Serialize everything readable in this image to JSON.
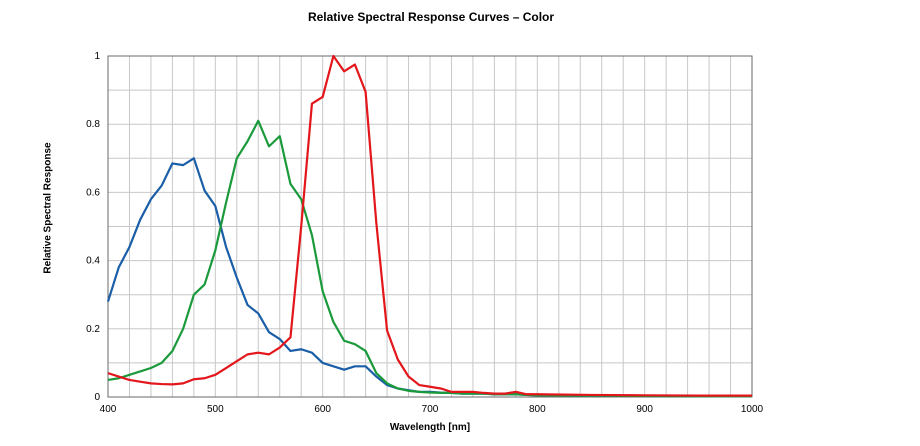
{
  "chart_data": {
    "type": "line",
    "title": "Relative Spectral Response Curves – Color",
    "xlabel": "Wavelength [nm]",
    "ylabel": "Relative Spectral Response",
    "xlim": [
      400,
      1000
    ],
    "ylim": [
      0,
      1
    ],
    "x_ticks": [
      "400",
      "500",
      "600",
      "700",
      "800",
      "900",
      "1000"
    ],
    "y_ticks": [
      "0",
      "0.2",
      "0.4",
      "0.6",
      "0.8",
      "1"
    ],
    "grid": true,
    "legend": "none",
    "series": [
      {
        "color": "#1a5ea8",
        "x": [
          400,
          410,
          420,
          430,
          440,
          450,
          460,
          470,
          480,
          490,
          500,
          510,
          520,
          530,
          540,
          550,
          560,
          570,
          580,
          590,
          600,
          610,
          620,
          630,
          640,
          650,
          660,
          670,
          680,
          690,
          700,
          710,
          720,
          730,
          740,
          750,
          760,
          770,
          780,
          790,
          800,
          850,
          900,
          950,
          1000
        ],
        "y": [
          0.28,
          0.38,
          0.44,
          0.52,
          0.58,
          0.62,
          0.685,
          0.68,
          0.7,
          0.605,
          0.56,
          0.44,
          0.35,
          0.27,
          0.245,
          0.19,
          0.17,
          0.135,
          0.14,
          0.13,
          0.1,
          0.09,
          0.08,
          0.09,
          0.09,
          0.06,
          0.035,
          0.025,
          0.02,
          0.015,
          0.015,
          0.013,
          0.012,
          0.01,
          0.01,
          0.01,
          0.008,
          0.008,
          0.008,
          0.006,
          0.005,
          0.004,
          0.003,
          0.002,
          0.003
        ]
      },
      {
        "color": "#1a9a3a",
        "x": [
          400,
          410,
          420,
          430,
          440,
          450,
          460,
          470,
          480,
          490,
          500,
          510,
          520,
          530,
          540,
          550,
          560,
          570,
          580,
          590,
          600,
          610,
          620,
          630,
          640,
          650,
          660,
          670,
          680,
          690,
          700,
          710,
          720,
          730,
          740,
          750,
          760,
          770,
          780,
          790,
          800,
          850,
          900,
          950,
          1000
        ],
        "y": [
          0.05,
          0.055,
          0.065,
          0.075,
          0.085,
          0.1,
          0.135,
          0.2,
          0.3,
          0.33,
          0.43,
          0.57,
          0.7,
          0.75,
          0.81,
          0.735,
          0.765,
          0.625,
          0.58,
          0.475,
          0.31,
          0.22,
          0.165,
          0.155,
          0.135,
          0.07,
          0.04,
          0.025,
          0.018,
          0.015,
          0.013,
          0.012,
          0.012,
          0.01,
          0.01,
          0.01,
          0.008,
          0.008,
          0.008,
          0.006,
          0.005,
          0.004,
          0.003,
          0.002,
          0.002
        ]
      },
      {
        "color": "#e3161b",
        "x": [
          400,
          410,
          420,
          430,
          440,
          450,
          460,
          470,
          480,
          490,
          500,
          510,
          520,
          530,
          540,
          550,
          560,
          570,
          580,
          590,
          600,
          610,
          620,
          630,
          640,
          650,
          660,
          670,
          680,
          690,
          700,
          710,
          720,
          730,
          740,
          750,
          760,
          770,
          780,
          790,
          800,
          850,
          900,
          950,
          1000
        ],
        "y": [
          0.07,
          0.06,
          0.05,
          0.045,
          0.04,
          0.038,
          0.037,
          0.04,
          0.052,
          0.055,
          0.065,
          0.085,
          0.105,
          0.125,
          0.13,
          0.125,
          0.145,
          0.175,
          0.5,
          0.86,
          0.88,
          1.0,
          0.955,
          0.975,
          0.895,
          0.51,
          0.195,
          0.11,
          0.06,
          0.035,
          0.03,
          0.025,
          0.015,
          0.015,
          0.015,
          0.012,
          0.01,
          0.01,
          0.015,
          0.008,
          0.008,
          0.006,
          0.005,
          0.004,
          0.004
        ]
      }
    ]
  }
}
